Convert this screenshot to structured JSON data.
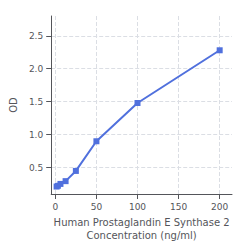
{
  "chart_data": {
    "type": "line",
    "xlabel": "Human Prostaglandin E Synthase 2\nConcentration (ng/ml)",
    "ylabel": "OD",
    "x": [
      1.5625,
      3.125,
      6.25,
      12.5,
      25,
      50,
      100,
      200
    ],
    "values": [
      0.213,
      0.225,
      0.253,
      0.295,
      0.45,
      0.9,
      1.48,
      2.28
    ],
    "xlim": [
      -5,
      215
    ],
    "xticks": [
      0,
      50,
      100,
      150,
      200
    ],
    "ylim": [
      0.1,
      2.8
    ],
    "yticks": [
      0.5,
      {
        "value": 1.0,
        "label": "1.0"
      },
      1.5,
      {
        "value": 2.0,
        "label": "2.0"
      },
      2.5
    ],
    "marker": "square",
    "grid": true
  }
}
